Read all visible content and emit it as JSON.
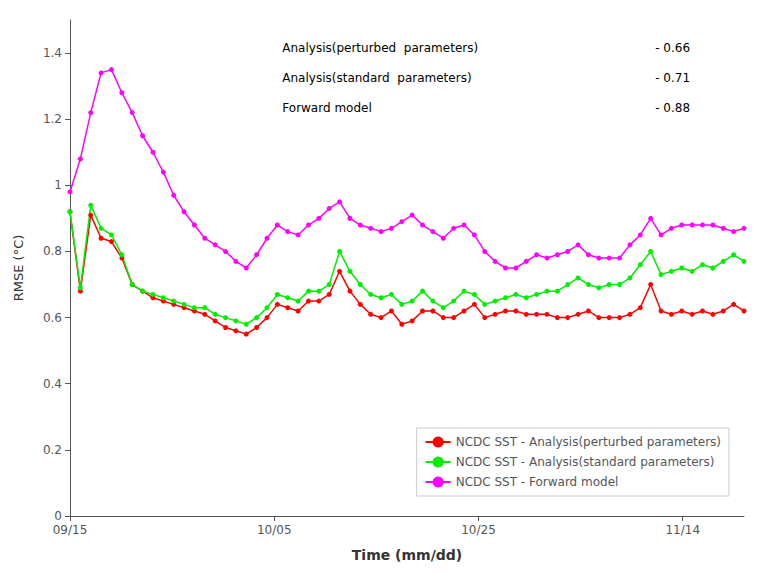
{
  "chart_data": {
    "type": "line",
    "xlabel": "Time (mm/dd)",
    "ylabel": "RMSE (°C)",
    "x": [
      0,
      1.015385,
      2.030769,
      3.046154,
      4.061538,
      5.076923,
      6.092308,
      7.107692,
      8.123077,
      9.138462,
      10.153846,
      11.169231,
      12.184615,
      13.2,
      14.215385,
      15.230769,
      16.246154,
      17.261538,
      18.276923,
      19.292308,
      20.307692,
      21.323077,
      22.338462,
      23.353846,
      24.369231,
      25.384615,
      26.4,
      27.415385,
      28.430769,
      29.446154,
      30.461538,
      31.476923,
      32.492308,
      33.507692,
      34.523077,
      35.538462,
      36.553846,
      37.569231,
      38.584615,
      39.6,
      40.615385,
      41.630769,
      42.646154,
      43.661538,
      44.676923,
      45.692308,
      46.707692,
      47.723077,
      48.738462,
      49.753846,
      50.769231,
      51.784615,
      52.8,
      53.815385,
      54.830769,
      55.846154,
      56.861538,
      57.876923,
      58.892308,
      59.907692,
      60.923077,
      61.938462,
      62.953846,
      63.969231,
      64.984615,
      66
    ],
    "xlim": [
      0,
      66
    ],
    "xticks": [
      {
        "value": 0,
        "label": "09/15"
      },
      {
        "value": 20,
        "label": "10/05"
      },
      {
        "value": 40,
        "label": "10/25"
      },
      {
        "value": 60,
        "label": "11/14"
      }
    ],
    "ylim": [
      0,
      1.5
    ],
    "yticks": [
      0,
      0.2,
      0.4,
      0.6,
      0.8,
      1,
      1.2,
      1.4
    ],
    "grid": false,
    "legend": "lower right",
    "marker": "circle",
    "series": [
      {
        "name": "NCDC SST - Analysis(perturbed parameters)",
        "color": "#ff0000",
        "values": [
          0.92,
          0.68,
          0.91,
          0.84,
          0.83,
          0.78,
          0.7,
          0.68,
          0.66,
          0.65,
          0.64,
          0.63,
          0.62,
          0.61,
          0.59,
          0.57,
          0.56,
          0.55,
          0.57,
          0.6,
          0.64,
          0.63,
          0.62,
          0.65,
          0.65,
          0.67,
          0.74,
          0.68,
          0.64,
          0.61,
          0.6,
          0.62,
          0.58,
          0.59,
          0.62,
          0.62,
          0.6,
          0.6,
          0.62,
          0.64,
          0.6,
          0.61,
          0.62,
          0.62,
          0.61,
          0.61,
          0.61,
          0.6,
          0.6,
          0.61,
          0.62,
          0.6,
          0.6,
          0.6,
          0.61,
          0.63,
          0.7,
          0.62,
          0.61,
          0.62,
          0.61,
          0.62,
          0.61,
          0.62,
          0.64,
          0.62
        ]
      },
      {
        "name": "NCDC SST - Analysis(standard parameters)",
        "color": "#00ee00",
        "values": [
          0.92,
          0.69,
          0.94,
          0.87,
          0.85,
          0.79,
          0.7,
          0.68,
          0.67,
          0.66,
          0.65,
          0.64,
          0.63,
          0.63,
          0.61,
          0.6,
          0.59,
          0.58,
          0.6,
          0.63,
          0.67,
          0.66,
          0.65,
          0.68,
          0.68,
          0.7,
          0.8,
          0.74,
          0.7,
          0.67,
          0.66,
          0.67,
          0.64,
          0.65,
          0.68,
          0.65,
          0.63,
          0.65,
          0.68,
          0.67,
          0.64,
          0.65,
          0.66,
          0.67,
          0.66,
          0.67,
          0.68,
          0.68,
          0.7,
          0.72,
          0.7,
          0.69,
          0.7,
          0.7,
          0.72,
          0.76,
          0.8,
          0.73,
          0.74,
          0.75,
          0.74,
          0.76,
          0.75,
          0.77,
          0.79,
          0.77
        ]
      },
      {
        "name": "NCDC SST - Forward model",
        "color": "#ff00ff",
        "values": [
          0.98,
          1.08,
          1.22,
          1.34,
          1.35,
          1.28,
          1.22,
          1.15,
          1.1,
          1.04,
          0.97,
          0.92,
          0.88,
          0.84,
          0.82,
          0.8,
          0.77,
          0.75,
          0.79,
          0.84,
          0.88,
          0.86,
          0.85,
          0.88,
          0.9,
          0.93,
          0.95,
          0.9,
          0.88,
          0.87,
          0.86,
          0.87,
          0.89,
          0.91,
          0.88,
          0.86,
          0.84,
          0.87,
          0.88,
          0.85,
          0.8,
          0.77,
          0.75,
          0.75,
          0.77,
          0.79,
          0.78,
          0.79,
          0.8,
          0.82,
          0.79,
          0.78,
          0.78,
          0.78,
          0.82,
          0.85,
          0.9,
          0.85,
          0.87,
          0.88,
          0.88,
          0.88,
          0.88,
          0.87,
          0.86,
          0.87
        ]
      }
    ],
    "annotations": [
      [
        "Analysis(perturbed  parameters)",
        "- 0.66"
      ],
      [
        "Analysis(standard  parameters)",
        "- 0.71"
      ],
      [
        "Forward model",
        "- 0.88"
      ]
    ]
  }
}
